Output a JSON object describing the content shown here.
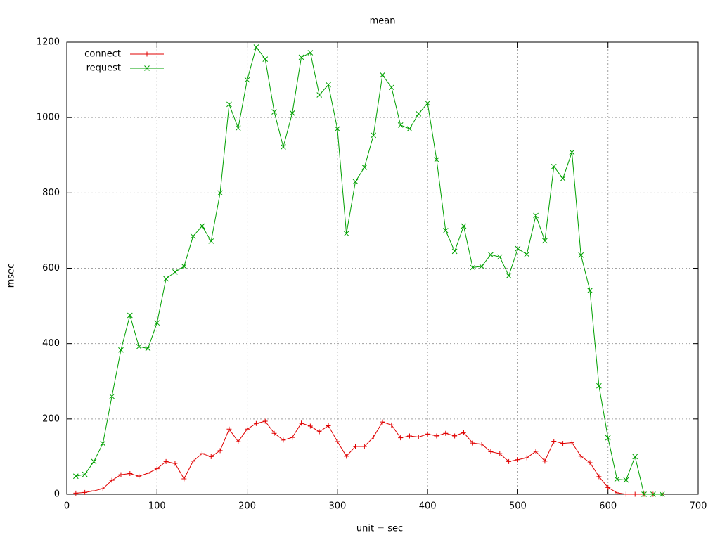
{
  "chart_data": {
    "type": "line",
    "title": "mean",
    "x_label": "unit = sec",
    "y_label": "msec",
    "x": [
      10,
      20,
      30,
      40,
      50,
      60,
      70,
      80,
      90,
      100,
      110,
      120,
      130,
      140,
      150,
      160,
      170,
      180,
      190,
      200,
      210,
      220,
      230,
      240,
      250,
      260,
      270,
      280,
      290,
      300,
      310,
      320,
      330,
      340,
      350,
      360,
      370,
      380,
      390,
      400,
      410,
      420,
      430,
      440,
      450,
      460,
      470,
      480,
      490,
      500,
      510,
      520,
      530,
      540,
      550,
      560,
      570,
      580,
      590,
      600,
      610,
      620,
      630,
      640,
      650,
      660
    ],
    "series": [
      {
        "name": "connect",
        "color": "#e00000",
        "marker": "plus",
        "values": [
          3,
          5,
          9,
          15,
          37,
          52,
          55,
          48,
          56,
          68,
          87,
          82,
          41,
          88,
          108,
          100,
          116,
          173,
          140,
          173,
          188,
          194,
          162,
          144,
          151,
          189,
          181,
          166,
          182,
          140,
          101,
          127,
          127,
          152,
          192,
          184,
          150,
          155,
          152,
          160,
          155,
          162,
          155,
          164,
          136,
          133,
          113,
          108,
          87,
          92,
          97,
          114,
          88,
          141,
          135,
          137,
          101,
          84,
          47,
          18,
          4,
          0,
          0,
          0,
          0,
          0
        ]
      },
      {
        "name": "request",
        "color": "#00a000",
        "marker": "cross",
        "values": [
          48,
          53,
          87,
          135,
          260,
          383,
          475,
          392,
          387,
          455,
          572,
          590,
          605,
          685,
          712,
          672,
          800,
          1035,
          972,
          1100,
          1187,
          1155,
          1015,
          922,
          1012,
          1160,
          1172,
          1060,
          1087,
          970,
          692,
          830,
          868,
          953,
          1113,
          1080,
          980,
          970,
          1010,
          1038,
          888,
          700,
          645,
          712,
          602,
          605,
          636,
          630,
          580,
          652,
          637,
          740,
          673,
          870,
          838,
          908,
          635,
          541,
          288,
          150,
          40,
          38,
          100,
          0,
          0,
          0
        ]
      }
    ],
    "xlim": [
      0,
      700
    ],
    "xticks": [
      0,
      100,
      200,
      300,
      400,
      500,
      600,
      700
    ],
    "ylim": [
      0,
      1200
    ],
    "yticks": [
      0,
      200,
      400,
      600,
      800,
      1000,
      1200
    ],
    "grid": true,
    "legend": "top-left"
  }
}
